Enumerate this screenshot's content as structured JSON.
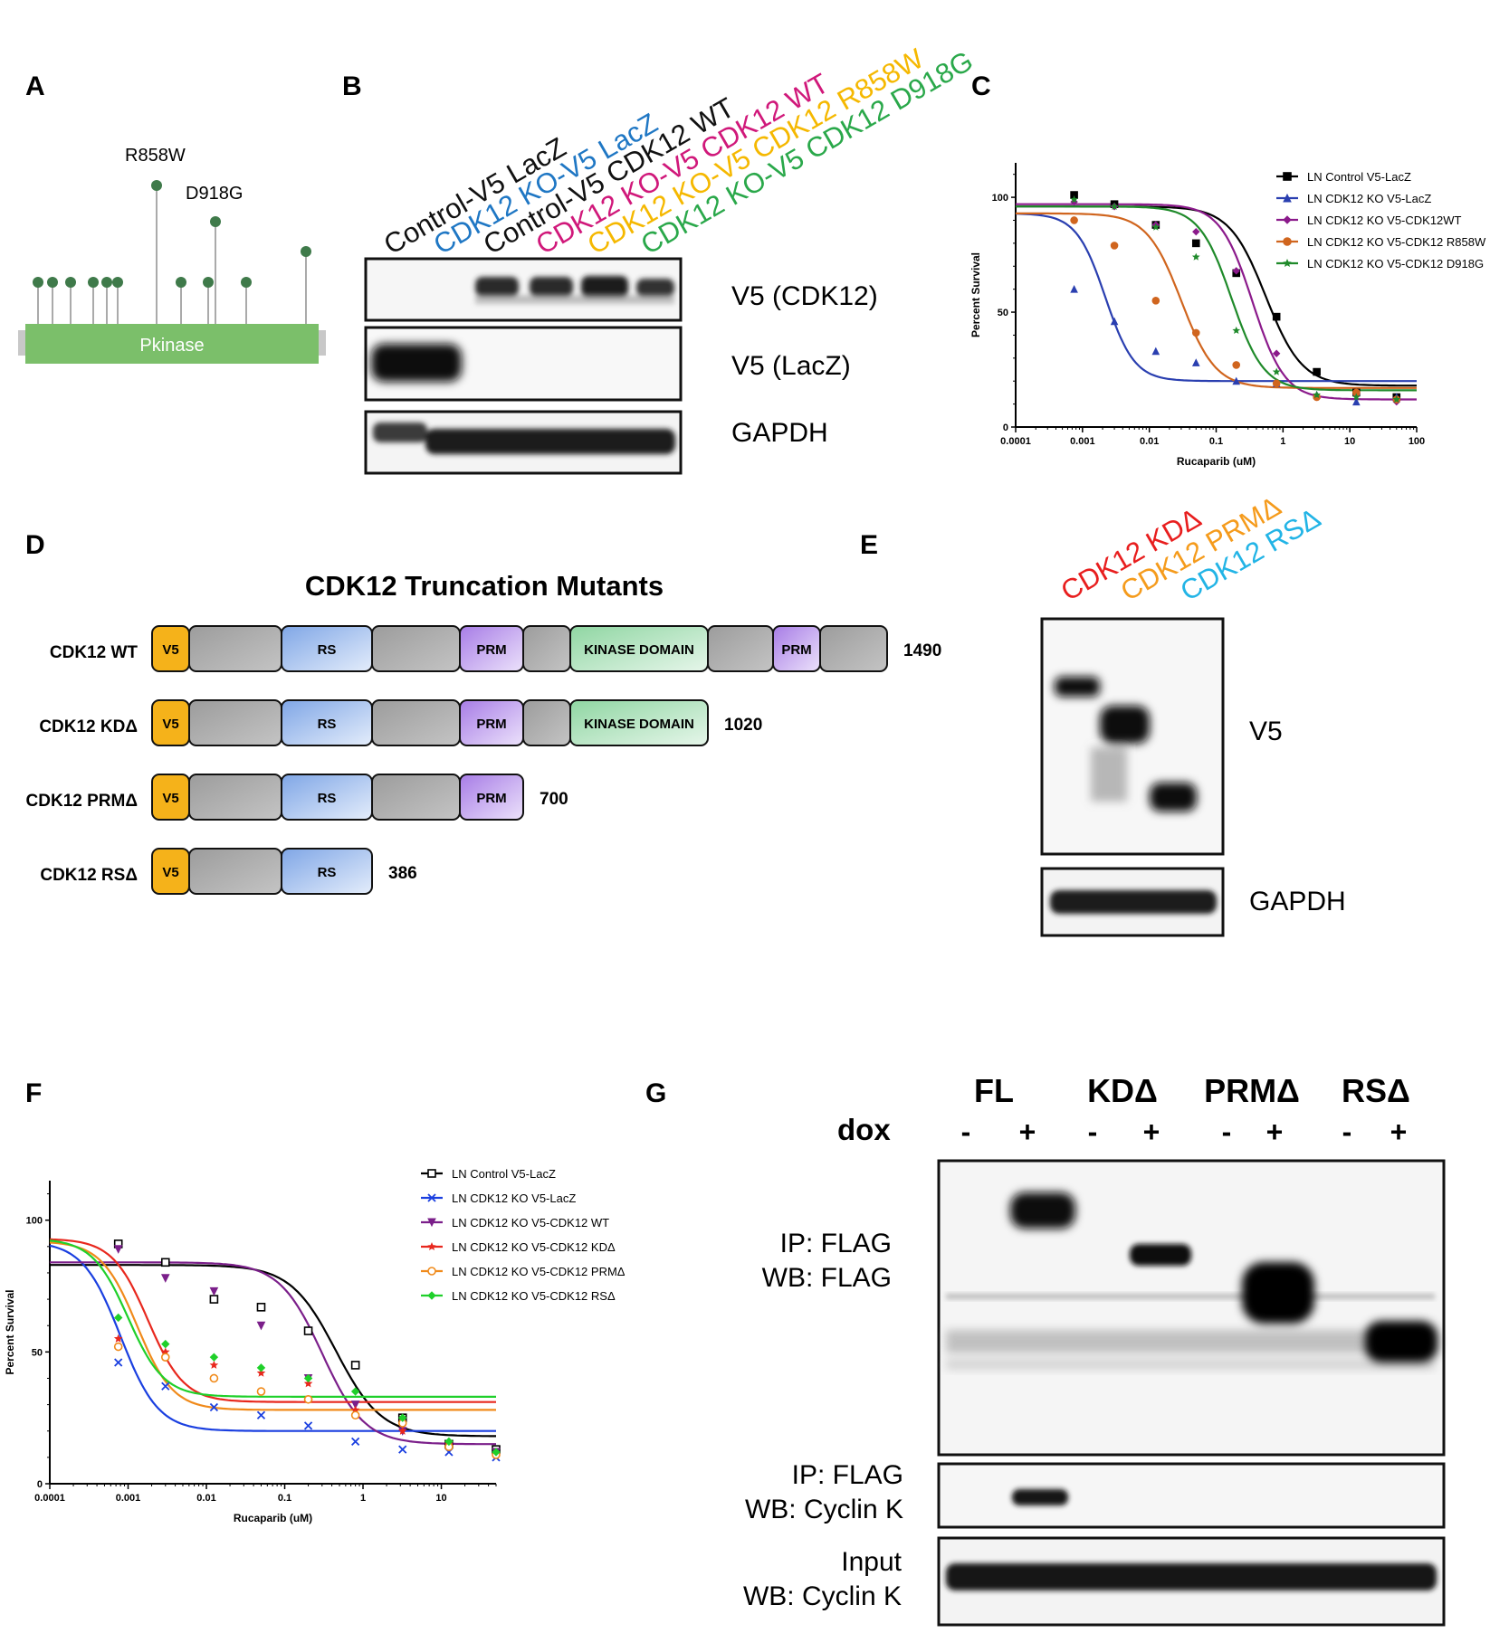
{
  "panelA": {
    "letter": "A",
    "domain_label": "Pkinase",
    "mutation_labels": [
      "R858W",
      "D918G"
    ]
  },
  "panelB": {
    "letter": "B",
    "lanes": [
      {
        "label": "Control-V5 LacZ",
        "color": "#111111"
      },
      {
        "label": "CDK12 KO-V5 LacZ",
        "color": "#1f77c4"
      },
      {
        "label": "Control-V5 CDK12 WT",
        "color": "#111111"
      },
      {
        "label": "CDK12 KO-V5 CDK12 WT",
        "color": "#d0187a"
      },
      {
        "label": "CDK12 KO-V5 CDK12 R858W",
        "color": "#f5b800"
      },
      {
        "label": "CDK12 KO-V5 CDK12 D918G",
        "color": "#2aa84a"
      }
    ],
    "blots": [
      "V5 (CDK12)",
      "V5 (LacZ)",
      "GAPDH"
    ]
  },
  "panelC": {
    "letter": "C"
  },
  "panelD": {
    "letter": "D",
    "title": "CDK12 Truncation Mutants",
    "constructs": [
      {
        "name": "CDK12 WT",
        "length": "1490"
      },
      {
        "name": "CDK12 KDΔ",
        "length": "1020"
      },
      {
        "name": "CDK12 PRMΔ",
        "length": "700"
      },
      {
        "name": "CDK12 RSΔ",
        "length": "386"
      }
    ],
    "domains": {
      "v5": "V5",
      "rs": "RS",
      "prm": "PRM",
      "kinase": "KINASE DOMAIN"
    }
  },
  "panelE": {
    "letter": "E",
    "lanes": [
      {
        "label": "CDK12 KDΔ",
        "color": "#e81e1e"
      },
      {
        "label": "CDK12 PRMΔ",
        "color": "#f59b1c"
      },
      {
        "label": "CDK12 RSΔ",
        "color": "#22b4e6"
      }
    ],
    "blots": [
      "V5",
      "GAPDH"
    ]
  },
  "panelF": {
    "letter": "F"
  },
  "panelG": {
    "letter": "G",
    "groups": [
      "FL",
      "KDΔ",
      "PRMΔ",
      "RSΔ"
    ],
    "dox_label": "dox",
    "dox_signs": [
      "-",
      "+",
      "-",
      "+",
      "-",
      "+",
      "-",
      "+"
    ],
    "blots": [
      {
        "line1": "IP: FLAG",
        "line2": "WB: FLAG"
      },
      {
        "line1": "IP: FLAG",
        "line2": "WB: Cyclin K"
      },
      {
        "line1": "Input",
        "line2": "WB: Cyclin K"
      }
    ]
  },
  "chart_data": [
    {
      "id": "C",
      "type": "scatter",
      "xlabel": "Rucaparib (uM)",
      "ylabel": "Percent Survival",
      "xscale": "log",
      "xlim": [
        0.0001,
        100
      ],
      "ylim": [
        0,
        115
      ],
      "xticks": [
        "0.0001",
        "0.001",
        "0.01",
        "0.1",
        "1",
        "10",
        "100"
      ],
      "yticks": [
        "0",
        "50",
        "100"
      ],
      "legend_position": "top-right",
      "x": [
        0.00075,
        0.003,
        0.0125,
        0.05,
        0.2,
        0.8,
        3.2,
        12.5,
        50
      ],
      "series": [
        {
          "name": "LN Control V5-LacZ",
          "color": "#000000",
          "marker": "square",
          "values": [
            101,
            97,
            88,
            80,
            67,
            48,
            24,
            15,
            13
          ],
          "fit": {
            "top": 96,
            "bottom": 18,
            "ic50": 0.55,
            "hill": 1.6
          }
        },
        {
          "name": "LN CDK12 KO V5-LacZ",
          "color": "#2a3fb0",
          "marker": "triangle",
          "values": [
            60,
            46,
            33,
            28,
            20,
            19,
            14,
            11,
            13
          ],
          "fit": {
            "top": 93,
            "bottom": 20,
            "ic50": 0.0022,
            "hill": 2.0
          }
        },
        {
          "name": "LN CDK12 KO V5-CDK12WT",
          "color": "#8b1a8b",
          "marker": "diamond",
          "values": [
            98,
            96,
            88,
            85,
            68,
            32,
            13,
            14,
            11
          ],
          "fit": {
            "top": 97,
            "bottom": 12,
            "ic50": 0.35,
            "hill": 1.8
          }
        },
        {
          "name": "LN CDK12 KO V5-CDK12 R858W",
          "color": "#d0651e",
          "marker": "circle",
          "values": [
            90,
            79,
            55,
            41,
            27,
            19,
            13,
            15,
            12
          ],
          "fit": {
            "top": 93,
            "bottom": 17,
            "ic50": 0.03,
            "hill": 1.7
          }
        },
        {
          "name": "LN CDK12 KO V5-CDK12 D918G",
          "color": "#1f8a2a",
          "marker": "star",
          "values": [
            99,
            96,
            87,
            74,
            42,
            24,
            14,
            13,
            12
          ],
          "fit": {
            "top": 96,
            "bottom": 16,
            "ic50": 0.17,
            "hill": 1.8
          }
        }
      ]
    },
    {
      "id": "F",
      "type": "scatter",
      "xlabel": "Rucaparib (uM)",
      "ylabel": "Percent Survival",
      "xscale": "log",
      "xlim": [
        0.0001,
        50
      ],
      "ylim": [
        0,
        115
      ],
      "xticks": [
        "0.0001",
        "0.001",
        "0.01",
        "0.1",
        "1",
        "10"
      ],
      "yticks": [
        "0",
        "50",
        "100"
      ],
      "legend_position": "top-right",
      "x": [
        0.00075,
        0.003,
        0.0125,
        0.05,
        0.2,
        0.8,
        3.2,
        12.5,
        50
      ],
      "series": [
        {
          "name": "LN Control V5-LacZ",
          "color": "#000000",
          "marker": "square-open",
          "values": [
            91,
            84,
            70,
            67,
            58,
            45,
            25,
            15,
            13
          ],
          "fit": {
            "top": 83,
            "bottom": 18,
            "ic50": 0.45,
            "hill": 1.5
          }
        },
        {
          "name": "LN CDK12 KO V5-LacZ",
          "color": "#1a3fe0",
          "marker": "x",
          "values": [
            46,
            37,
            29,
            26,
            22,
            16,
            13,
            12,
            10
          ],
          "fit": {
            "top": 92,
            "bottom": 20,
            "ic50": 0.0008,
            "hill": 1.8
          }
        },
        {
          "name": "LN CDK12 KO V5-CDK12 WT",
          "color": "#7b1f8a",
          "marker": "triangle-down",
          "values": [
            89,
            78,
            73,
            60,
            40,
            30,
            20,
            14,
            12
          ],
          "fit": {
            "top": 84,
            "bottom": 15,
            "ic50": 0.3,
            "hill": 1.6
          }
        },
        {
          "name": "LN CDK12 KO V5-CDK12 KDΔ",
          "color": "#e8281e",
          "marker": "star",
          "values": [
            55,
            50,
            45,
            42,
            38,
            28,
            20,
            15,
            11
          ],
          "fit": {
            "top": 93,
            "bottom": 31,
            "ic50": 0.0018,
            "hill": 1.9
          }
        },
        {
          "name": "LN CDK12 KO V5-CDK12 PRMΔ",
          "color": "#f08a1a",
          "marker": "circle-open",
          "values": [
            52,
            48,
            40,
            35,
            32,
            26,
            23,
            14,
            11
          ],
          "fit": {
            "top": 92,
            "bottom": 28,
            "ic50": 0.0013,
            "hill": 1.9
          }
        },
        {
          "name": "LN CDK12 KO V5-CDK12 RSΔ",
          "color": "#1fd02a",
          "marker": "diamond",
          "values": [
            63,
            53,
            48,
            44,
            40,
            35,
            25,
            16,
            12
          ],
          "fit": {
            "top": 93,
            "bottom": 33,
            "ic50": 0.001,
            "hill": 1.9
          }
        }
      ]
    }
  ]
}
